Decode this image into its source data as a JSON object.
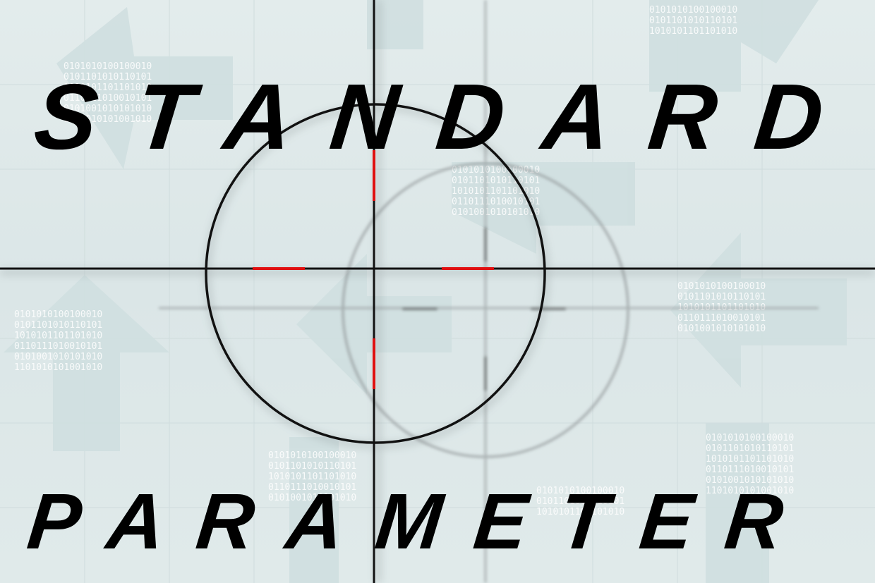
{
  "title": "STANDARD",
  "subtitle": "PARAMETER",
  "colors": {
    "background": "#dfe9ea",
    "text": "#000000",
    "reticle": "#111111",
    "reticle_marks": "#e01010",
    "ghost_reticle": "#8a8f91"
  },
  "decor": {
    "binary_rows": [
      "0101010100100010111",
      "0101101010110101010",
      "1010101101101010110",
      "0110111010010101100",
      "0101001010101010101",
      "1101010101001010101"
    ]
  }
}
